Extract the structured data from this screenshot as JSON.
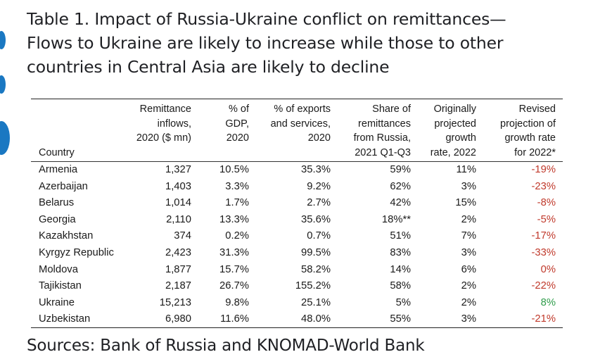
{
  "title_lines": [
    "Table 1. Impact of Russia-Ukraine conflict on remittances—",
    "Flows to Ukraine are likely to increase while those to other",
    "countries in Central Asia are likely to decline"
  ],
  "columns": {
    "country": "Country",
    "remittance": [
      "Remittance",
      "inflows,",
      "2020 ($ mn)"
    ],
    "gdp": [
      "% of",
      "GDP,",
      "2020"
    ],
    "exports": [
      "% of exports",
      "and services,",
      "2020"
    ],
    "share": [
      "Share of",
      "remittances",
      "from Russia,",
      "2021 Q1-Q3"
    ],
    "original": [
      "Originally",
      "projected",
      "growth",
      "rate, 2022"
    ],
    "revised": [
      "Revised",
      "projection of",
      "growth rate",
      "for 2022*"
    ]
  },
  "rows": [
    {
      "country": "Armenia",
      "remittance": "1,327",
      "gdp": "10.5%",
      "exports": "35.3%",
      "share": "59%",
      "original": "11%",
      "revised": "-19%",
      "revised_class": "neg"
    },
    {
      "country": "Azerbaijan",
      "remittance": "1,403",
      "gdp": "3.3%",
      "exports": "9.2%",
      "share": "62%",
      "original": "3%",
      "revised": "-23%",
      "revised_class": "neg"
    },
    {
      "country": "Belarus",
      "remittance": "1,014",
      "gdp": "1.7%",
      "exports": "2.7%",
      "share": "42%",
      "original": "15%",
      "revised": "-8%",
      "revised_class": "neg"
    },
    {
      "country": "Georgia",
      "remittance": "2,110",
      "gdp": "13.3%",
      "exports": "35.6%",
      "share": "18%**",
      "original": "2%",
      "revised": "-5%",
      "revised_class": "neg"
    },
    {
      "country": "Kazakhstan",
      "remittance": "374",
      "gdp": "0.2%",
      "exports": "0.7%",
      "share": "51%",
      "original": "7%",
      "revised": "-17%",
      "revised_class": "neg"
    },
    {
      "country": "Kyrgyz Republic",
      "remittance": "2,423",
      "gdp": "31.3%",
      "exports": "99.5%",
      "share": "83%",
      "original": "3%",
      "revised": "-33%",
      "revised_class": "neg"
    },
    {
      "country": "Moldova",
      "remittance": "1,877",
      "gdp": "15.7%",
      "exports": "58.2%",
      "share": "14%",
      "original": "6%",
      "revised": "0%",
      "revised_class": "zero"
    },
    {
      "country": "Tajikistan",
      "remittance": "2,187",
      "gdp": "26.7%",
      "exports": "155.2%",
      "share": "58%",
      "original": "2%",
      "revised": "-22%",
      "revised_class": "neg"
    },
    {
      "country": "Ukraine",
      "remittance": "15,213",
      "gdp": "9.8%",
      "exports": "25.1%",
      "share": "5%",
      "original": "2%",
      "revised": "8%",
      "revised_class": "pos"
    },
    {
      "country": "Uzbekistan",
      "remittance": "6,980",
      "gdp": "11.6%",
      "exports": "48.0%",
      "share": "55%",
      "original": "3%",
      "revised": "-21%",
      "revised_class": "neg"
    }
  ],
  "source": "Sources: Bank of Russia and KNOMAD-World Bank",
  "colors": {
    "negative": "#c0392b",
    "positive": "#2e9c4a",
    "accent": "#1a78c2"
  }
}
